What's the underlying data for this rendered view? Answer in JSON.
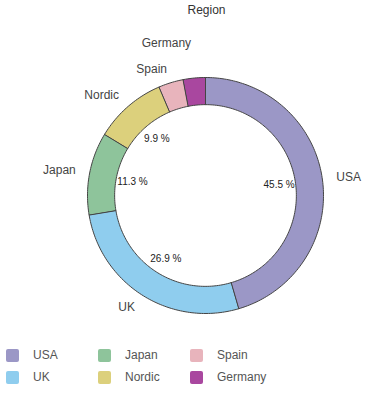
{
  "chart_data": {
    "type": "donut",
    "title": "Region",
    "categories": [
      "USA",
      "UK",
      "Japan",
      "Nordic",
      "Spain",
      "Germany"
    ],
    "values": [
      45.5,
      26.9,
      11.3,
      9.9,
      3.4,
      3.0
    ],
    "value_labels": [
      "45.5 %",
      "26.9 %",
      "11.3 %",
      "9.9 %",
      null,
      null
    ],
    "data_labels": true,
    "colors": [
      "#9b97c6",
      "#8fcdee",
      "#8ec49b",
      "#dcd07c",
      "#e8b4bc",
      "#a9479f"
    ],
    "legend": "bottom"
  }
}
